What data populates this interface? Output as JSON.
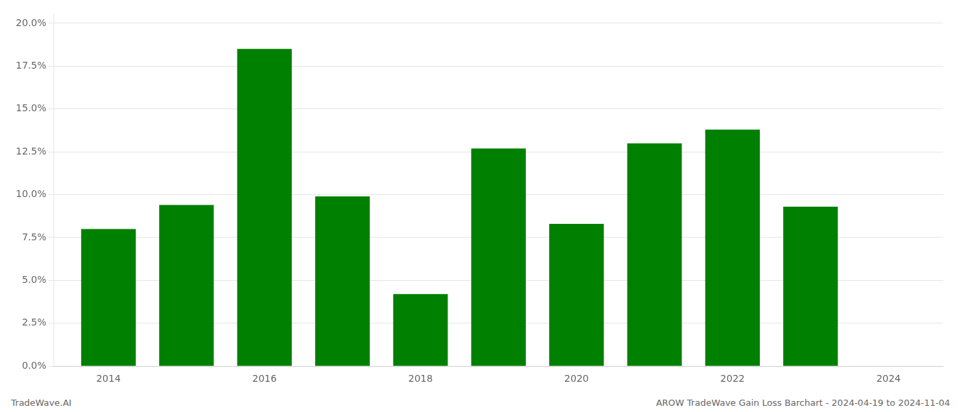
{
  "chart_data": {
    "type": "bar",
    "x": [
      2014,
      2015,
      2016,
      2017,
      2018,
      2019,
      2020,
      2021,
      2022,
      2023
    ],
    "values": [
      0.08,
      0.094,
      0.185,
      0.099,
      0.042,
      0.127,
      0.083,
      0.13,
      0.138,
      0.093
    ],
    "color": "#008000",
    "xlim": [
      2013.3,
      2024.7
    ],
    "xticks": [
      2014,
      2016,
      2018,
      2020,
      2022,
      2024
    ],
    "ylim": [
      0,
      0.205
    ],
    "yticks": [
      {
        "value": 0.0,
        "label": "0.0%"
      },
      {
        "value": 0.025,
        "label": "2.5%"
      },
      {
        "value": 0.05,
        "label": "5.0%"
      },
      {
        "value": 0.075,
        "label": "7.5%"
      },
      {
        "value": 0.1,
        "label": "10.0%"
      },
      {
        "value": 0.125,
        "label": "12.5%"
      },
      {
        "value": 0.15,
        "label": "15.0%"
      },
      {
        "value": 0.175,
        "label": "17.5%"
      },
      {
        "value": 0.2,
        "label": "20.0%"
      }
    ],
    "grid": true,
    "annotations": [
      "TradeWave.AI",
      "AROW TradeWave Gain Loss Barchart - 2024-04-19 to 2024-11-04"
    ]
  }
}
